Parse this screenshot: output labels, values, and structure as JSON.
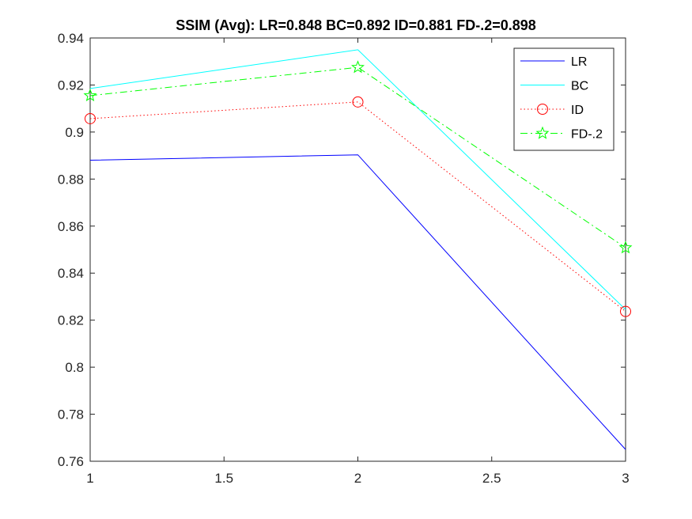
{
  "chart_data": {
    "type": "line",
    "title": "SSIM (Avg):  LR=0.848  BC=0.892  ID=0.881  FD-.2=0.898",
    "xlabel": "",
    "ylabel": "",
    "xlim": [
      1,
      3
    ],
    "ylim": [
      0.76,
      0.94
    ],
    "xticks": [
      1,
      1.5,
      2,
      2.5,
      3
    ],
    "xtick_labels": [
      "1",
      "1.5",
      "2",
      "2.5",
      "3"
    ],
    "yticks": [
      0.76,
      0.78,
      0.8,
      0.82,
      0.84,
      0.86,
      0.88,
      0.9,
      0.92,
      0.94
    ],
    "ytick_labels": [
      "0.76",
      "0.78",
      "0.8",
      "0.82",
      "0.84",
      "0.86",
      "0.88",
      "0.9",
      "0.92",
      "0.94"
    ],
    "grid": false,
    "legend_position": "top-right",
    "x": [
      1,
      2,
      3
    ],
    "series": [
      {
        "name": "LR",
        "values": [
          0.888,
          0.8903,
          0.765
        ],
        "color": "#0000ff",
        "line_style": "solid",
        "marker": "none"
      },
      {
        "name": "BC",
        "values": [
          0.9185,
          0.935,
          0.8245
        ],
        "color": "#00ffff",
        "line_style": "solid",
        "marker": "none"
      },
      {
        "name": "ID",
        "values": [
          0.9057,
          0.9128,
          0.8237
        ],
        "color": "#ff0000",
        "line_style": "dotted",
        "marker": "circle"
      },
      {
        "name": "FD-.2",
        "values": [
          0.9155,
          0.9275,
          0.8508
        ],
        "color": "#00ff00",
        "line_style": "dashdot",
        "marker": "star"
      }
    ]
  }
}
